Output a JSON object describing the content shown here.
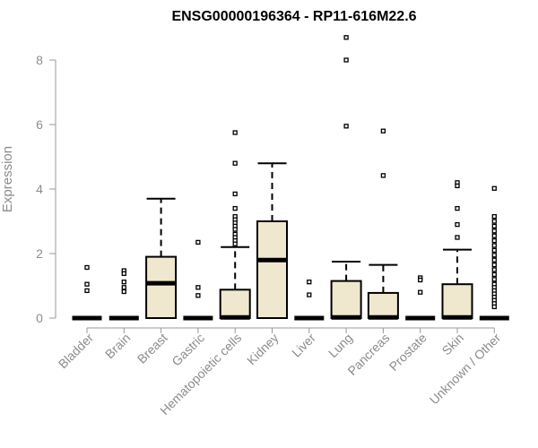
{
  "chart_data": {
    "type": "boxplot",
    "title": "ENSG00000196364 - RP11-616M22.6",
    "ylabel": "Expression",
    "xlabel": "",
    "ylim": [
      0,
      8.8
    ],
    "yticks": [
      0,
      2,
      4,
      6,
      8
    ],
    "box_fill": "#efe8cf",
    "categories": [
      "Bladder",
      "Brain",
      "Breast",
      "Gastric",
      "Hematopoietic cells",
      "Kidney",
      "Liver",
      "Lung",
      "Pancreas",
      "Prostate",
      "Skin",
      "Unknown / Other"
    ],
    "boxes": [
      {
        "category": "Bladder",
        "min": 0,
        "q1": 0,
        "median": 0,
        "q3": 0,
        "max": 0,
        "outliers": [
          1.57,
          1.05,
          0.85
        ]
      },
      {
        "category": "Brain",
        "min": 0,
        "q1": 0,
        "median": 0,
        "q3": 0,
        "max": 0,
        "outliers": [
          1.47,
          1.38,
          1.12,
          0.95,
          0.82
        ]
      },
      {
        "category": "Breast",
        "min": 0,
        "q1": 0,
        "median": 1.08,
        "q3": 1.9,
        "max": 3.7,
        "outliers": []
      },
      {
        "category": "Gastric",
        "min": 0,
        "q1": 0,
        "median": 0,
        "q3": 0,
        "max": 0,
        "outliers": [
          2.35,
          0.95,
          0.7
        ]
      },
      {
        "category": "Hematopoietic cells",
        "min": 0,
        "q1": 0,
        "median": 0.02,
        "q3": 0.88,
        "max": 2.2,
        "outliers": [
          5.75,
          4.8,
          3.85,
          3.4,
          3.15,
          3.05,
          2.95,
          2.85,
          2.75,
          2.6,
          2.5,
          2.4,
          2.3
        ]
      },
      {
        "category": "Kidney",
        "min": 0,
        "q1": 0,
        "median": 1.8,
        "q3": 3.0,
        "max": 4.8,
        "outliers": []
      },
      {
        "category": "Liver",
        "min": 0,
        "q1": 0,
        "median": 0,
        "q3": 0,
        "max": 0,
        "outliers": [
          1.12,
          0.72
        ]
      },
      {
        "category": "Lung",
        "min": 0,
        "q1": 0,
        "median": 0.02,
        "q3": 1.15,
        "max": 1.75,
        "outliers": [
          8.7,
          8.0,
          5.95
        ]
      },
      {
        "category": "Pancreas",
        "min": 0,
        "q1": 0,
        "median": 0.02,
        "q3": 0.78,
        "max": 1.65,
        "outliers": [
          5.8,
          4.42
        ]
      },
      {
        "category": "Prostate",
        "min": 0,
        "q1": 0,
        "median": 0,
        "q3": 0,
        "max": 0,
        "outliers": [
          1.25,
          1.18,
          0.8
        ]
      },
      {
        "category": "Skin",
        "min": 0,
        "q1": 0,
        "median": 0.02,
        "q3": 1.05,
        "max": 2.12,
        "outliers": [
          4.2,
          4.1,
          3.4,
          2.9,
          2.5
        ]
      },
      {
        "category": "Unknown / Other",
        "min": 0,
        "q1": 0,
        "median": 0,
        "q3": 0,
        "max": 0,
        "outliers": [
          4.02,
          3.15,
          3.0,
          2.85,
          2.7,
          2.55,
          2.4,
          2.25,
          2.1,
          1.95,
          1.8,
          1.65,
          1.5,
          1.35,
          1.2,
          1.05,
          0.95,
          0.85,
          0.75,
          0.65,
          0.55,
          0.45,
          0.35
        ]
      }
    ]
  }
}
